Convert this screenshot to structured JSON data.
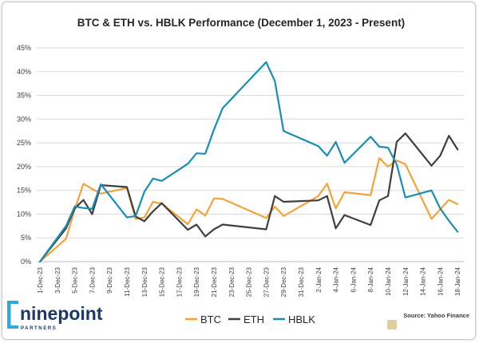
{
  "chart_data": {
    "type": "line",
    "title": "BTC & ETH vs. HBLK Performance (December 1, 2023 - Present)",
    "xlabel": "",
    "ylabel": "",
    "ylim": [
      0,
      45
    ],
    "grid": "horizontal",
    "legend": "bottom",
    "y_tick_labels": [
      "0%",
      "5%",
      "10%",
      "15%",
      "20%",
      "25%",
      "30%",
      "35%",
      "40%",
      "45%"
    ],
    "x_tick_labels": [
      "1-Dec-23",
      "3-Dec-23",
      "5-Dec-23",
      "7-Dec-23",
      "9-Dec-23",
      "11-Dec-23",
      "13-Dec-23",
      "15-Dec-23",
      "17-Dec-23",
      "19-Dec-23",
      "21-Dec-23",
      "23-Dec-23",
      "25-Dec-23",
      "27-Dec-23",
      "29-Dec-23",
      "31-Dec-23",
      "2-Jan-24",
      "4-Jan-24",
      "6-Jan-24",
      "8-Jan-24",
      "10-Jan-24",
      "12-Jan-24",
      "14-Jan-24",
      "16-Jan-24",
      "18-Jan-24"
    ],
    "x": [
      "2023-12-01",
      "2023-12-04",
      "2023-12-05",
      "2023-12-06",
      "2023-12-07",
      "2023-12-08",
      "2023-12-11",
      "2023-12-12",
      "2023-12-13",
      "2023-12-14",
      "2023-12-15",
      "2023-12-18",
      "2023-12-19",
      "2023-12-20",
      "2023-12-21",
      "2023-12-22",
      "2023-12-27",
      "2023-12-28",
      "2023-12-29",
      "2024-01-02",
      "2024-01-03",
      "2024-01-04",
      "2024-01-05",
      "2024-01-08",
      "2024-01-09",
      "2024-01-10",
      "2024-01-11",
      "2024-01-12",
      "2024-01-15",
      "2024-01-16",
      "2024-01-17",
      "2024-01-18"
    ],
    "series": [
      {
        "name": "BTC",
        "color": "#F2A33A",
        "values": [
          0,
          4.8,
          11.0,
          16.4,
          15.3,
          14.3,
          15.5,
          9.0,
          9.3,
          12.6,
          12.2,
          7.9,
          11.0,
          9.7,
          13.3,
          13.2,
          9.2,
          11.6,
          9.6,
          13.8,
          16.4,
          11.2,
          14.6,
          14.0,
          21.8,
          20.0,
          21.3,
          20.5,
          9.0,
          11.0,
          13.0,
          12.1
        ]
      },
      {
        "name": "ETH",
        "color": "#3F3F3F",
        "values": [
          0,
          7.0,
          11.2,
          13.0,
          10.0,
          16.1,
          15.7,
          9.5,
          8.5,
          10.6,
          12.3,
          6.7,
          7.8,
          5.3,
          6.8,
          7.8,
          6.8,
          13.8,
          12.6,
          12.9,
          13.8,
          7.0,
          9.8,
          7.7,
          12.9,
          13.8,
          25.2,
          27.0,
          20.2,
          22.3,
          26.5,
          23.6
        ]
      },
      {
        "name": "HBLK",
        "color": "#1A8DB5",
        "values": [
          0,
          7.5,
          11.6,
          11.3,
          11.1,
          16.3,
          9.3,
          9.6,
          14.7,
          17.5,
          17.0,
          20.6,
          22.8,
          22.7,
          27.8,
          32.3,
          42.0,
          38.0,
          27.5,
          24.3,
          22.3,
          25.2,
          20.8,
          26.3,
          24.2,
          24.0,
          20.5,
          13.5,
          15.0,
          11.2,
          8.6,
          6.3
        ]
      }
    ]
  },
  "logo": {
    "wordmark": "ninepoint",
    "subtitle": "PARTNERS",
    "mark_color": "#2FA8DF",
    "text_color": "#1D3767"
  },
  "source": "Source: Yahoo Finance"
}
